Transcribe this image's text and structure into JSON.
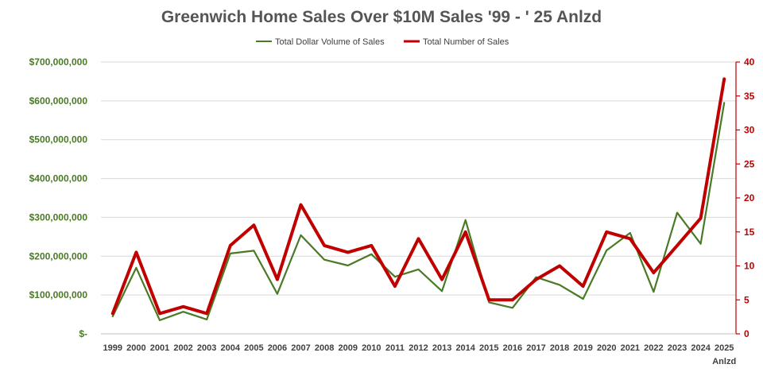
{
  "chart_data": {
    "type": "line",
    "title": "Greenwich Home Sales Over $10M Sales '99 - ' 25 Anlzd",
    "categories": [
      "1999",
      "2000",
      "2001",
      "2002",
      "2003",
      "2004",
      "2005",
      "2006",
      "2007",
      "2008",
      "2009",
      "2010",
      "2011",
      "2012",
      "2013",
      "2014",
      "2015",
      "2016",
      "2017",
      "2018",
      "2019",
      "2020",
      "2021",
      "2022",
      "2023",
      "2024",
      "2025"
    ],
    "x_extra_label": "Anlzd",
    "series": [
      {
        "name": "Total Dollar Volume of Sales",
        "axis": "left",
        "color": "#4a7a26",
        "values": [
          45000000,
          170000000,
          35000000,
          57000000,
          37000000,
          207000000,
          214000000,
          103000000,
          254000000,
          191000000,
          176000000,
          205000000,
          147000000,
          166000000,
          110000000,
          293000000,
          81000000,
          67000000,
          146000000,
          126000000,
          90000000,
          215000000,
          260000000,
          108000000,
          312000000,
          232000000,
          595000000
        ]
      },
      {
        "name": "Total Number of Sales",
        "axis": "right",
        "color": "#c00000",
        "values": [
          3,
          12,
          3,
          4,
          3,
          13,
          16,
          8,
          19,
          13,
          12,
          13,
          7,
          14,
          8,
          15,
          5,
          5,
          8,
          10,
          7,
          15,
          14,
          9,
          13,
          17,
          37.5
        ]
      }
    ],
    "y_left": {
      "min": 0,
      "max": 700000000,
      "ticks": [
        {
          "value": 0,
          "label": "$-"
        },
        {
          "value": 100000000,
          "label": "$100,000,000"
        },
        {
          "value": 200000000,
          "label": "$200,000,000"
        },
        {
          "value": 300000000,
          "label": "$300,000,000"
        },
        {
          "value": 400000000,
          "label": "$400,000,000"
        },
        {
          "value": 500000000,
          "label": "$500,000,000"
        },
        {
          "value": 600000000,
          "label": "$600,000,000"
        },
        {
          "value": 700000000,
          "label": "$700,000,000"
        }
      ]
    },
    "y_right": {
      "min": 0,
      "max": 40,
      "ticks": [
        {
          "value": 0,
          "label": "0"
        },
        {
          "value": 5,
          "label": "5"
        },
        {
          "value": 10,
          "label": "10"
        },
        {
          "value": 15,
          "label": "15"
        },
        {
          "value": 20,
          "label": "20"
        },
        {
          "value": 25,
          "label": "25"
        },
        {
          "value": 30,
          "label": "30"
        },
        {
          "value": 35,
          "label": "35"
        },
        {
          "value": 40,
          "label": "40"
        }
      ]
    },
    "legend_position": "top-center",
    "grid": true
  }
}
